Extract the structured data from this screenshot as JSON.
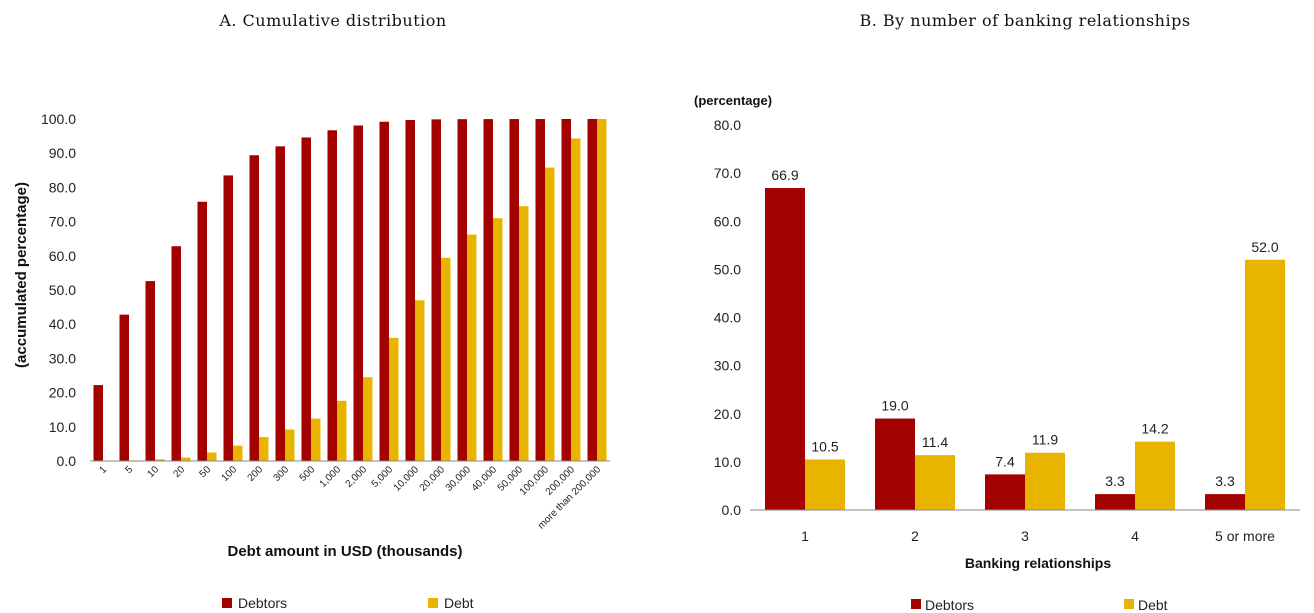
{
  "colors": {
    "debtors": "#a30000",
    "debt": "#e8b400"
  },
  "chart_data": [
    {
      "type": "bar",
      "title": "A. Cumulative distribution",
      "xlabel": "Debt amount in USD (thousands)",
      "ylabel": "(accumulated percentage)",
      "ylim": [
        0,
        100
      ],
      "yticks": [
        "0.0",
        "10.0",
        "20.0",
        "30.0",
        "40.0",
        "50.0",
        "60.0",
        "70.0",
        "80.0",
        "90.0",
        "100.0"
      ],
      "categories": [
        "1",
        "5",
        "10",
        "20",
        "50",
        "100",
        "200",
        "300",
        "500",
        "1,000",
        "2,000",
        "5,000",
        "10,000",
        "20,000",
        "30,000",
        "40,000",
        "50,000",
        "100,000",
        "200,000",
        "more than 200,000"
      ],
      "series": [
        {
          "name": "Debtors",
          "values": [
            22.2,
            42.8,
            52.6,
            62.8,
            75.8,
            83.5,
            89.4,
            92.0,
            94.6,
            96.7,
            98.1,
            99.2,
            99.7,
            99.9,
            99.95,
            99.97,
            99.98,
            99.99,
            100.0,
            100.0
          ]
        },
        {
          "name": "Debt",
          "values": [
            0.1,
            0.2,
            0.5,
            1.0,
            2.5,
            4.5,
            7.0,
            9.2,
            12.4,
            17.6,
            24.5,
            36.0,
            47.0,
            59.4,
            66.2,
            71.0,
            74.5,
            85.8,
            94.3,
            100.0
          ]
        }
      ],
      "legend": "bottom"
    },
    {
      "type": "bar",
      "title": "B. By number of banking relationships",
      "subtitle": "(percentage)",
      "xlabel": "Banking relationships",
      "ylabel": "",
      "ylim": [
        0,
        80
      ],
      "yticks": [
        "0.0",
        "10.0",
        "20.0",
        "30.0",
        "40.0",
        "50.0",
        "60.0",
        "70.0",
        "80.0"
      ],
      "categories": [
        "1",
        "2",
        "3",
        "4",
        "5 or more"
      ],
      "series": [
        {
          "name": "Debtors",
          "values": [
            66.9,
            19.0,
            7.4,
            3.3,
            3.3
          ],
          "labels": [
            "66.9",
            "19.0",
            "7.4",
            "3.3",
            "3.3"
          ]
        },
        {
          "name": "Debt",
          "values": [
            10.5,
            11.4,
            11.9,
            14.2,
            52.0
          ],
          "labels": [
            "10.5",
            "11.4",
            "11.9",
            "14.2",
            "52.0"
          ]
        }
      ],
      "legend": "bottom"
    }
  ]
}
